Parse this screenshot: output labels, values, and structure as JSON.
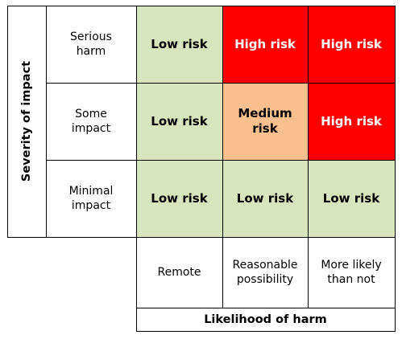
{
  "y_axis": {
    "title": "Severity of impact",
    "levels": [
      "Serious harm",
      "Some impact",
      "Minimal impact"
    ]
  },
  "x_axis": {
    "title": "Likelihood of harm",
    "levels": [
      "Remote",
      "Reasonable possibility",
      "More likely than not"
    ]
  },
  "matrix": [
    [
      "Low risk",
      "High risk",
      "High risk"
    ],
    [
      "Low risk",
      "Medium risk",
      "High risk"
    ],
    [
      "Low risk",
      "Low risk",
      "Low risk"
    ]
  ],
  "colors": {
    "low": "#d8e4bc",
    "medium": "#f9bf8f",
    "high": "#ff0000"
  }
}
